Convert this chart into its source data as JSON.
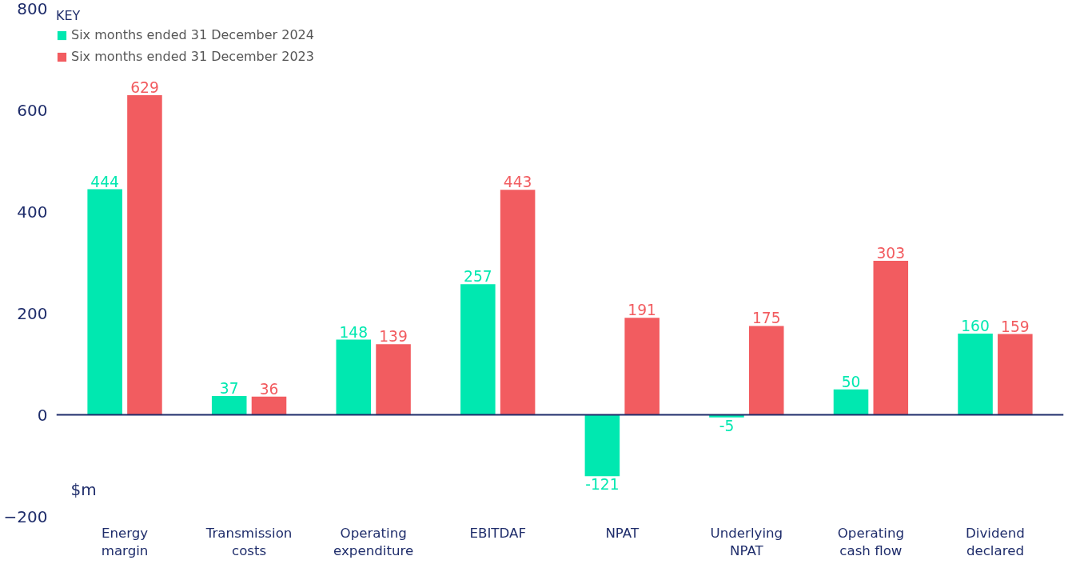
{
  "chart_data": {
    "type": "bar",
    "ylabel": "$m",
    "legend_title": "KEY",
    "categories": [
      "Energy margin",
      "Transmission costs",
      "Operating expenditure",
      "EBITDAF",
      "NPAT",
      "Underlying NPAT",
      "Operating cash flow",
      "Dividend declared"
    ],
    "series": [
      {
        "name": "Six months ended 31 December 2024",
        "color": "#00e8b0",
        "values": [
          444,
          37,
          148,
          257,
          -121,
          -5,
          50,
          160
        ]
      },
      {
        "name": "Six months ended 31 December 2023",
        "color": "#f25c60",
        "values": [
          629,
          36,
          139,
          443,
          191,
          175,
          303,
          159
        ]
      }
    ],
    "ylim": [
      -200,
      800
    ],
    "yticks": [
      -200,
      0,
      200,
      400,
      600,
      800
    ],
    "ref_lines": [
      {
        "axis": "y",
        "value": 0,
        "color": "#1f2d6b"
      }
    ],
    "data_labels": true,
    "grid": false,
    "legend": "top left"
  }
}
